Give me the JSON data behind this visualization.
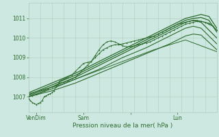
{
  "xlabel": "Pression niveau de la mer( hPa )",
  "bg_color": "#cce8e0",
  "grid_color": "#b0ccbb",
  "line_color": "#2d6a2d",
  "ylim": [
    1006.2,
    1011.8
  ],
  "xlim": [
    0,
    96
  ],
  "xtick_positions": [
    4,
    28,
    52,
    76
  ],
  "xtick_labels": [
    "VenDim",
    "Sam",
    "",
    "Lun"
  ],
  "ytick_positions": [
    1007,
    1008,
    1009,
    1010,
    1011
  ],
  "ytick_labels": [
    "1007",
    "1008",
    "1009",
    "1010",
    "1011"
  ],
  "series": [
    {
      "x": [
        0,
        1,
        2,
        3,
        4,
        5,
        6,
        7,
        8,
        9,
        10,
        11,
        12,
        13,
        14,
        15,
        16,
        17,
        18,
        19,
        20,
        22,
        24,
        26,
        28,
        30,
        32,
        34,
        36,
        38,
        40,
        42,
        44,
        46,
        48,
        50,
        52,
        54,
        56,
        58,
        60,
        62,
        64,
        66,
        68,
        70,
        72,
        74,
        76,
        78,
        80,
        82,
        84,
        86,
        88,
        90,
        92,
        94,
        96
      ],
      "y": [
        1006.9,
        1006.8,
        1006.7,
        1006.65,
        1006.6,
        1006.65,
        1006.7,
        1006.8,
        1007.0,
        1007.05,
        1007.1,
        1007.15,
        1007.2,
        1007.3,
        1007.5,
        1007.6,
        1007.8,
        1007.85,
        1007.9,
        1007.95,
        1008.0,
        1008.1,
        1008.3,
        1008.5,
        1008.7,
        1008.75,
        1008.8,
        1009.0,
        1009.2,
        1009.4,
        1009.5,
        1009.6,
        1009.65,
        1009.65,
        1009.7,
        1009.75,
        1009.8,
        1009.85,
        1009.9,
        1009.95,
        1010.0,
        1010.05,
        1010.1,
        1010.2,
        1010.3,
        1010.4,
        1010.5,
        1010.6,
        1010.7,
        1010.75,
        1010.8,
        1010.85,
        1010.9,
        1010.9,
        1010.85,
        1010.8,
        1010.75,
        1010.6,
        1010.4
      ],
      "marker": true,
      "lw": 0.7
    },
    {
      "x": [
        0,
        2,
        4,
        6,
        8,
        10,
        12,
        14,
        16,
        18,
        20,
        22,
        24,
        26,
        28,
        30,
        32,
        34,
        36,
        38,
        40,
        42,
        44,
        46,
        48,
        50,
        52,
        54,
        56,
        58,
        60,
        62,
        64,
        66,
        68,
        70,
        72,
        74,
        76,
        78,
        80,
        82,
        84,
        86,
        88,
        90,
        92,
        94,
        96
      ],
      "y": [
        1007.0,
        1007.05,
        1007.1,
        1007.2,
        1007.3,
        1007.4,
        1007.5,
        1007.6,
        1007.7,
        1007.75,
        1007.8,
        1007.9,
        1008.0,
        1008.2,
        1008.4,
        1008.6,
        1008.8,
        1009.1,
        1009.4,
        1009.65,
        1009.8,
        1009.85,
        1009.8,
        1009.7,
        1009.6,
        1009.55,
        1009.55,
        1009.6,
        1009.65,
        1009.7,
        1009.75,
        1009.8,
        1009.9,
        1010.0,
        1010.1,
        1010.2,
        1010.3,
        1010.4,
        1010.5,
        1010.6,
        1010.7,
        1010.75,
        1010.8,
        1010.85,
        1010.85,
        1010.8,
        1010.7,
        1010.6,
        1010.4
      ],
      "marker": true,
      "lw": 0.7
    },
    {
      "x": [
        0,
        12,
        24,
        36,
        48,
        60,
        72,
        80,
        84,
        88,
        92,
        96
      ],
      "y": [
        1007.2,
        1007.7,
        1008.2,
        1008.8,
        1009.4,
        1010.0,
        1010.6,
        1011.0,
        1011.1,
        1011.2,
        1011.1,
        1010.5
      ],
      "marker": false,
      "lw": 0.9
    },
    {
      "x": [
        0,
        12,
        24,
        36,
        48,
        60,
        72,
        80,
        84,
        88,
        92,
        96
      ],
      "y": [
        1007.1,
        1007.6,
        1008.1,
        1008.7,
        1009.3,
        1009.9,
        1010.5,
        1010.9,
        1011.0,
        1011.05,
        1010.9,
        1010.3
      ],
      "marker": false,
      "lw": 0.9
    },
    {
      "x": [
        0,
        12,
        24,
        36,
        48,
        60,
        72,
        80,
        84,
        88,
        96
      ],
      "y": [
        1007.05,
        1007.5,
        1008.0,
        1008.6,
        1009.2,
        1009.8,
        1010.4,
        1010.8,
        1010.9,
        1010.8,
        1010.0
      ],
      "marker": false,
      "lw": 0.9
    },
    {
      "x": [
        0,
        12,
        24,
        36,
        48,
        60,
        72,
        80,
        84,
        88,
        96
      ],
      "y": [
        1007.0,
        1007.4,
        1007.9,
        1008.4,
        1009.0,
        1009.5,
        1010.1,
        1010.5,
        1010.6,
        1010.5,
        1009.7
      ],
      "marker": false,
      "lw": 0.8
    },
    {
      "x": [
        0,
        12,
        24,
        36,
        48,
        60,
        72,
        80,
        84,
        88,
        96
      ],
      "y": [
        1007.0,
        1007.3,
        1007.7,
        1008.2,
        1008.7,
        1009.2,
        1009.7,
        1010.1,
        1010.2,
        1010.15,
        1009.4
      ],
      "marker": false,
      "lw": 0.8
    },
    {
      "x": [
        0,
        16,
        32,
        48,
        64,
        80,
        96
      ],
      "y": [
        1007.15,
        1007.6,
        1008.2,
        1008.8,
        1009.4,
        1009.9,
        1009.3
      ],
      "marker": false,
      "lw": 0.7
    }
  ]
}
